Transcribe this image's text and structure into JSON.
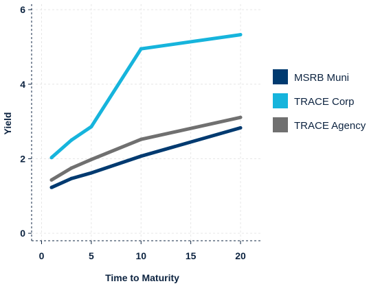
{
  "chart_data": {
    "type": "line",
    "title": "",
    "xlabel": "Time to Maturity",
    "ylabel": "Yield",
    "xlim": [
      -1,
      22
    ],
    "ylim": [
      -0.2,
      6.15
    ],
    "xticks": [
      0,
      5,
      10,
      15,
      20
    ],
    "yticks": [
      0,
      2,
      4,
      6
    ],
    "grid": true,
    "legend_position": "right",
    "x": [
      1,
      3,
      5,
      10,
      20
    ],
    "series": [
      {
        "name": "MSRB Muni",
        "color": "#003a70",
        "values": [
          1.23,
          1.47,
          1.62,
          2.07,
          2.83
        ]
      },
      {
        "name": "TRACE Corp",
        "color": "#16b4dc",
        "values": [
          2.03,
          2.5,
          2.86,
          4.95,
          5.33
        ]
      },
      {
        "name": "TRACE Agency",
        "color": "#707070",
        "values": [
          1.43,
          1.75,
          1.98,
          2.52,
          3.11
        ]
      }
    ]
  }
}
